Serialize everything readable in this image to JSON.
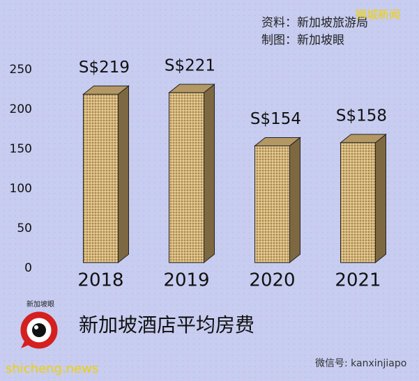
{
  "chart_data": {
    "type": "bar3d",
    "title": "新加坡酒店平均房费",
    "source": "资料：新加坡旅游局",
    "credit": "制图：新加坡眼",
    "categories": [
      "2018",
      "2019",
      "2020",
      "2021"
    ],
    "values": [
      219,
      221,
      154,
      158
    ],
    "value_labels": [
      "S$219",
      "S$221",
      "S$154",
      "S$158"
    ],
    "color": "#c9a96b",
    "ylim": [
      0,
      250
    ],
    "yticks": [
      0,
      50,
      100,
      150,
      200,
      250
    ]
  },
  "watermarks": {
    "top": "狮城新闻",
    "site": "shicheng.news",
    "wechat": "微信号: kanxinjiapo",
    "logo": "新加坡眼"
  }
}
